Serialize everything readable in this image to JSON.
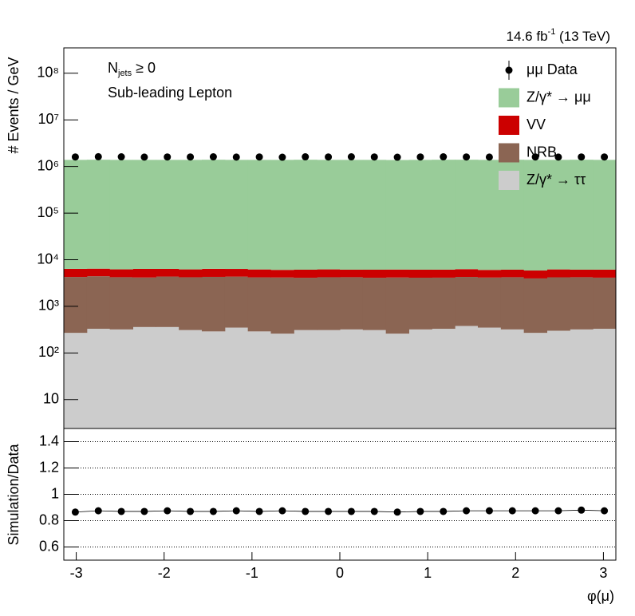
{
  "chart_data": [
    {
      "type": "stacked-histogram",
      "log_y": true,
      "lumi_label": [
        "14.6 fb",
        "-1",
        " (13 TeV)"
      ],
      "annotations": [
        "N",
        "jets",
        " ≥ 0",
        "Sub-leading Lepton"
      ],
      "y_label": "# Events / GeV",
      "bins": [
        -3.1416,
        -2.8798,
        -2.618,
        -2.3562,
        -2.0944,
        -1.8326,
        -1.5708,
        -1.309,
        -1.0472,
        -0.7854,
        -0.5236,
        -0.2618,
        0,
        0.2618,
        0.5236,
        0.7854,
        1.0472,
        1.309,
        1.5708,
        1.8326,
        2.0944,
        2.3562,
        2.618,
        2.8798,
        3.1416
      ],
      "xlim": [
        -3.1416,
        3.1416
      ],
      "ylim": [
        2.4,
        350000000
      ],
      "yticks": [
        {
          "value": 10,
          "label": "10"
        },
        {
          "value": 100,
          "label": "10²"
        },
        {
          "value": 1000,
          "label": "10³"
        },
        {
          "value": 10000,
          "label": "10⁴"
        },
        {
          "value": 100000,
          "label": "10⁵"
        },
        {
          "value": 1000000,
          "label": "10⁶"
        },
        {
          "value": 10000000,
          "label": "10⁷"
        },
        {
          "value": 100000000,
          "label": "10⁸"
        }
      ],
      "series": [
        {
          "name": "Z/γ* → ττ",
          "color": "#cccccc",
          "values": [
            270,
            330,
            320,
            360,
            360,
            310,
            290,
            350,
            290,
            260,
            310,
            310,
            320,
            310,
            260,
            320,
            330,
            380,
            350,
            320,
            270,
            300,
            320,
            330
          ]
        },
        {
          "name": "NRB",
          "color": "#8b6553",
          "values": [
            4000,
            4100,
            3900,
            3800,
            4000,
            3900,
            4000,
            4000,
            3900,
            3900,
            3800,
            3900,
            3900,
            3800,
            3900,
            3800,
            3800,
            3900,
            3800,
            3900,
            3700,
            3900,
            3900,
            3800
          ]
        },
        {
          "name": "VV",
          "color": "#cc0000",
          "values": [
            2100,
            2000,
            2000,
            2200,
            2000,
            2000,
            2100,
            2000,
            2000,
            1900,
            2000,
            2000,
            1900,
            2000,
            2000,
            2000,
            2000,
            2000,
            1900,
            1900,
            1900,
            2000,
            1900,
            2000
          ]
        },
        {
          "name": "Z/γ* → μμ",
          "color": "#99cc99",
          "values": [
            1380000,
            1390000,
            1380000,
            1380000,
            1380000,
            1380000,
            1390000,
            1380000,
            1380000,
            1380000,
            1390000,
            1380000,
            1380000,
            1380000,
            1370000,
            1380000,
            1390000,
            1390000,
            1380000,
            1390000,
            1380000,
            1380000,
            1390000,
            1380000
          ]
        }
      ],
      "data": {
        "name": "μμ Data",
        "color": "#000000",
        "values": [
          1600000,
          1620000,
          1610000,
          1590000,
          1600000,
          1600000,
          1610000,
          1590000,
          1600000,
          1580000,
          1610000,
          1600000,
          1610000,
          1600000,
          1580000,
          1600000,
          1610000,
          1600000,
          1590000,
          1610000,
          1600000,
          1590000,
          1600000,
          1600000
        ]
      }
    },
    {
      "type": "ratio",
      "y_label": "Simulation/Data",
      "x_label": "φ(μ)",
      "xlim": [
        -3.1416,
        3.1416
      ],
      "xticks": [
        -3,
        -2,
        -1,
        0,
        1,
        2,
        3
      ],
      "ylim": [
        0.5,
        1.5
      ],
      "yticks": [
        0.6,
        0.8,
        1,
        1.2,
        1.4
      ],
      "grid": true,
      "x": [
        -3.0107,
        -2.7489,
        -2.4871,
        -2.2253,
        -1.9635,
        -1.7017,
        -1.4399,
        -1.1781,
        -0.9163,
        -0.6545,
        -0.3927,
        -0.1309,
        0.1309,
        0.3927,
        0.6545,
        0.9163,
        1.1781,
        1.4399,
        1.7017,
        1.9635,
        2.2253,
        2.4871,
        2.7489,
        3.0107
      ],
      "values": [
        0.865,
        0.875,
        0.87,
        0.87,
        0.875,
        0.87,
        0.87,
        0.875,
        0.87,
        0.875,
        0.87,
        0.87,
        0.87,
        0.87,
        0.865,
        0.87,
        0.87,
        0.875,
        0.875,
        0.875,
        0.875,
        0.875,
        0.88,
        0.875
      ],
      "color": "#000000"
    }
  ]
}
